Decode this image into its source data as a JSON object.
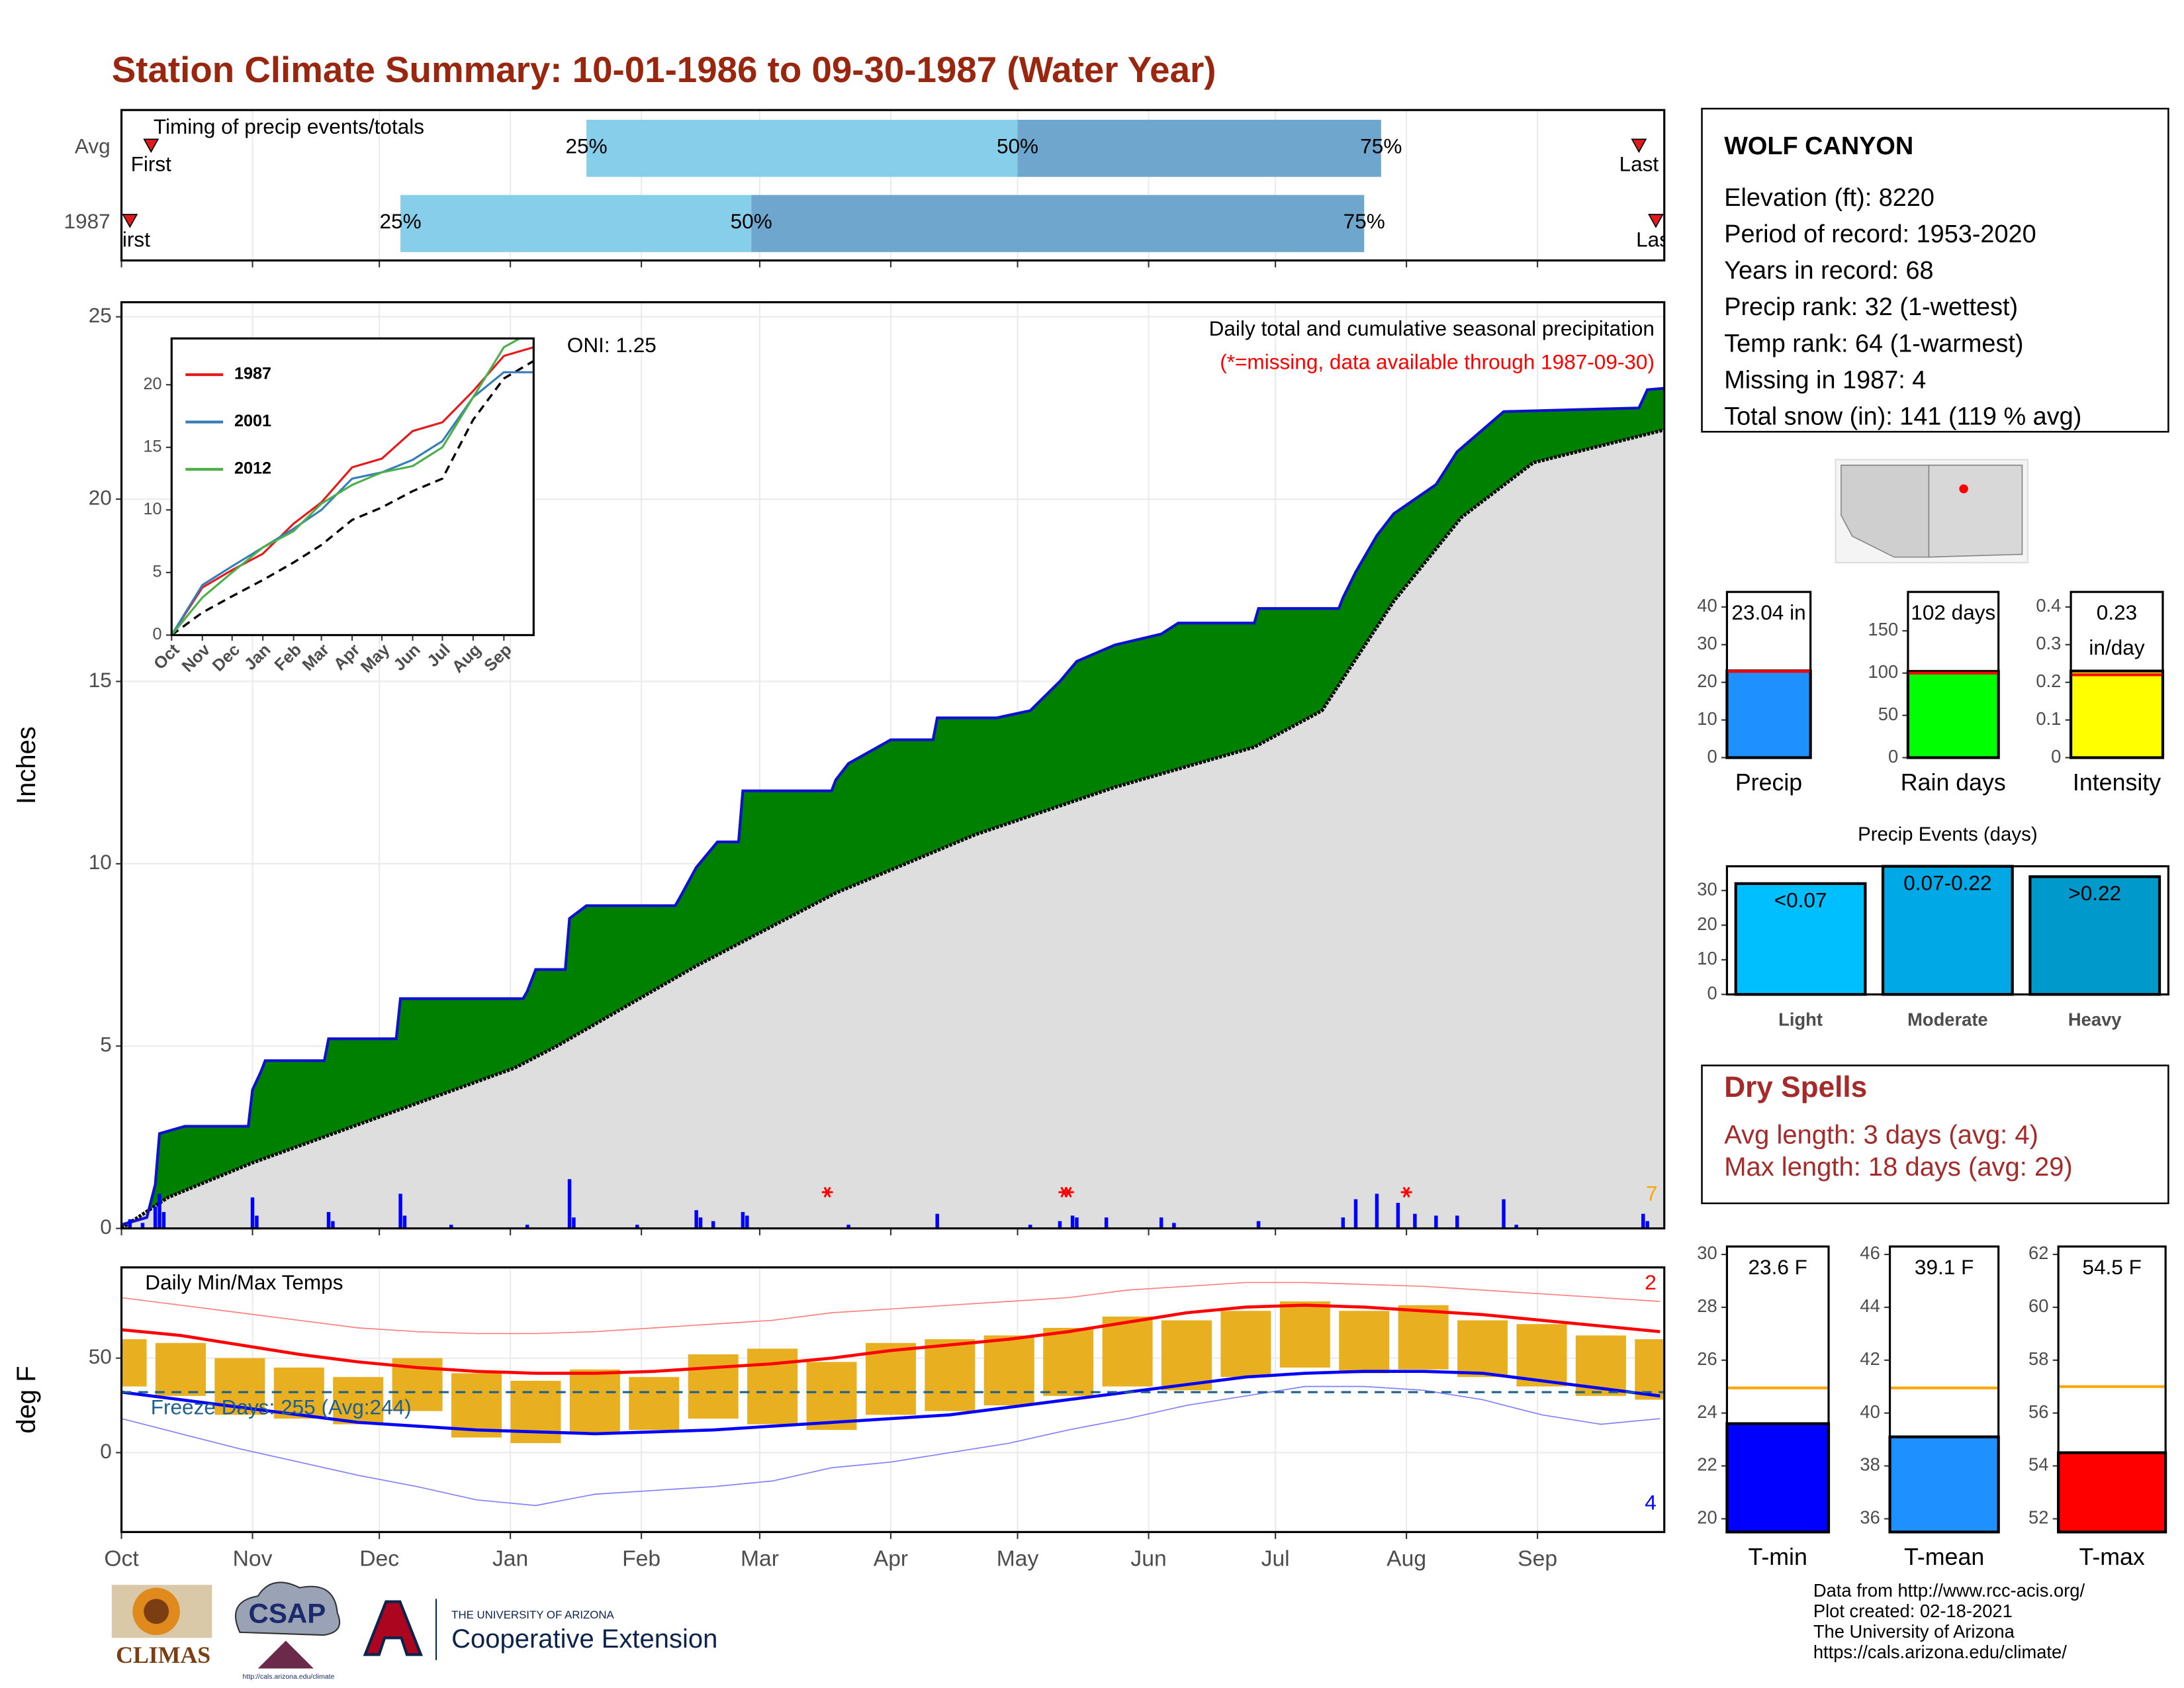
{
  "title": "Station Climate Summary: 10-01-1986 to 09-30-1987 (Water Year)",
  "chart_data": [
    {
      "type": "range-bar",
      "title": "Timing of precip events/totals",
      "categories": [
        "Avg",
        "1987"
      ],
      "first": [
        7,
        2
      ],
      "q25": [
        110,
        66
      ],
      "q50": [
        212,
        149
      ],
      "q75": [
        298,
        294
      ],
      "last": [
        359,
        363
      ],
      "labels": {
        "first": "First",
        "last": "Last",
        "q25": "25%",
        "q50": "50%",
        "q75": "75%"
      },
      "colors": [
        "#87ceeb",
        "#6fa6cd"
      ],
      "marker_color": "#e31a1c",
      "xlim": [
        0,
        365
      ],
      "xticks": [
        0,
        31,
        61,
        92,
        123,
        151,
        182,
        212,
        243,
        273,
        304,
        335
      ]
    },
    {
      "type": "area",
      "ylabel": "Inches",
      "annotation": "Daily total and cumulative seasonal precipitation",
      "note": "(*=missing, data available through 1987-09-30)",
      "note_color": "#ff0000",
      "oni": "ONI: 1.25",
      "count_label": "7",
      "count_color": "#ffa500",
      "grid": true,
      "xlim": [
        0,
        365
      ],
      "xticks": [
        0,
        31,
        61,
        92,
        123,
        151,
        182,
        212,
        243,
        273,
        304,
        335
      ],
      "ylim": [
        0,
        25.4
      ],
      "yticks": [
        0,
        5,
        10,
        15,
        20,
        25
      ],
      "observed": {
        "color": "#1010d0",
        "fill": "#008000",
        "x": [
          0,
          6,
          8,
          9,
          15,
          30,
          31,
          33,
          34,
          48,
          49,
          65,
          66,
          95,
          96,
          98,
          105,
          106,
          110,
          131,
          132,
          136,
          141,
          146,
          147,
          168,
          169,
          172,
          182,
          192,
          193,
          207,
          215,
          222,
          226,
          235,
          246,
          250,
          268,
          269,
          288,
          289,
          292,
          297,
          301,
          311,
          316,
          327,
          359,
          361,
          365
        ],
        "values": [
          0.1,
          0.3,
          1.2,
          2.6,
          2.8,
          2.8,
          3.8,
          4.3,
          4.6,
          4.6,
          5.2,
          5.2,
          6.3,
          6.3,
          6.5,
          7.1,
          7.1,
          8.5,
          8.85,
          8.85,
          9.05,
          9.9,
          10.6,
          10.6,
          12.0,
          12.0,
          12.3,
          12.75,
          13.4,
          13.4,
          14.0,
          14.0,
          14.2,
          15.0,
          15.55,
          16.0,
          16.3,
          16.6,
          16.6,
          17.0,
          17.0,
          17.3,
          18.0,
          19.0,
          19.6,
          20.4,
          21.3,
          22.4,
          22.5,
          23.0,
          23.04
        ]
      },
      "average": {
        "color": "#000000",
        "fill": "#dedede",
        "x": [
          0,
          11,
          31,
          62,
          93,
          103,
          136,
          169,
          202,
          235,
          268,
          284,
          301,
          317,
          334,
          365
        ],
        "values": [
          0,
          0.85,
          1.8,
          3.1,
          4.4,
          5.0,
          7.2,
          9.2,
          10.8,
          12.1,
          13.2,
          14.2,
          17.2,
          19.5,
          21.0,
          21.9
        ]
      },
      "daily": {
        "color": "#0000ff",
        "x": [
          2,
          5,
          8,
          9,
          10,
          31,
          32,
          49,
          50,
          66,
          67,
          78,
          96,
          106,
          107,
          122,
          136,
          137,
          140,
          147,
          148,
          172,
          193,
          215,
          222,
          225,
          226,
          233,
          246,
          249,
          269,
          289,
          292,
          297,
          302,
          306,
          311,
          316,
          327,
          330,
          360,
          361
        ],
        "values": [
          0.25,
          0.15,
          0.6,
          0.95,
          0.45,
          0.85,
          0.35,
          0.45,
          0.2,
          0.95,
          0.35,
          0.1,
          0.1,
          1.35,
          0.3,
          0.1,
          0.5,
          0.3,
          0.2,
          0.45,
          0.35,
          0.1,
          0.4,
          0.1,
          0.2,
          0.35,
          0.3,
          0.3,
          0.3,
          0.15,
          0.2,
          0.3,
          0.8,
          0.95,
          0.7,
          0.4,
          0.35,
          0.35,
          0.8,
          0.1,
          0.4,
          0.2
        ]
      },
      "missing": {
        "color": "#ff0000",
        "x": [
          167,
          223,
          224,
          304
        ]
      }
    },
    {
      "type": "line",
      "xlim": [
        0,
        365
      ],
      "xticks": [
        {
          "value": 0,
          "label": "Oct"
        },
        {
          "value": 31,
          "label": "Nov"
        },
        {
          "value": 61,
          "label": "Dec"
        },
        {
          "value": 92,
          "label": "Jan"
        },
        {
          "value": 123,
          "label": "Feb"
        },
        {
          "value": 151,
          "label": "Mar"
        },
        {
          "value": 182,
          "label": "Apr"
        },
        {
          "value": 212,
          "label": "May"
        },
        {
          "value": 243,
          "label": "Jun"
        },
        {
          "value": 273,
          "label": "Jul"
        },
        {
          "value": 304,
          "label": "Aug"
        },
        {
          "value": 335,
          "label": "Sep"
        }
      ],
      "ylim": [
        0,
        23.7
      ],
      "yticks": [
        0,
        5,
        10,
        15,
        20
      ],
      "x": [
        0,
        31,
        61,
        92,
        123,
        151,
        182,
        212,
        243,
        273,
        304,
        335,
        365
      ],
      "series": [
        {
          "name": "1987",
          "color": "#e41a1c",
          "values": [
            0,
            3.8,
            5.2,
            6.5,
            8.9,
            10.6,
            13.4,
            14.1,
            16.3,
            17.0,
            19.5,
            22.3,
            23.0
          ]
        },
        {
          "name": "2001",
          "color": "#377eb8",
          "values": [
            0,
            4,
            5.5,
            7,
            8.5,
            10,
            12.5,
            13,
            14,
            15.5,
            19,
            21,
            21
          ]
        },
        {
          "name": "2012",
          "color": "#4daf4a",
          "values": [
            0,
            3,
            5,
            7,
            8.3,
            10.5,
            12,
            13,
            13.5,
            15,
            19,
            23,
            24.3
          ]
        }
      ],
      "average": {
        "color": "#000000",
        "values": [
          0,
          1.8,
          3.1,
          4.4,
          5.8,
          7.2,
          9.2,
          10.2,
          11.5,
          12.5,
          17.2,
          20.5,
          21.9
        ]
      }
    },
    {
      "type": "range",
      "title": "Daily Min/Max Temps",
      "ylabel": "deg F",
      "grid": true,
      "xlim": [
        0,
        365
      ],
      "xticks": [
        {
          "value": 0,
          "label": "Oct"
        },
        {
          "value": 31,
          "label": "Nov"
        },
        {
          "value": 61,
          "label": "Dec"
        },
        {
          "value": 92,
          "label": "Jan"
        },
        {
          "value": 123,
          "label": "Feb"
        },
        {
          "value": 151,
          "label": "Mar"
        },
        {
          "value": 182,
          "label": "Apr"
        },
        {
          "value": 212,
          "label": "May"
        },
        {
          "value": 243,
          "label": "Jun"
        },
        {
          "value": 273,
          "label": "Jul"
        },
        {
          "value": 304,
          "label": "Aug"
        },
        {
          "value": 335,
          "label": "Sep"
        }
      ],
      "ylim": [
        -42,
        98
      ],
      "yticks": [
        0,
        50
      ],
      "x": [
        0,
        14,
        28,
        42,
        56,
        70,
        84,
        98,
        112,
        126,
        140,
        154,
        168,
        182,
        196,
        210,
        224,
        238,
        252,
        266,
        280,
        294,
        308,
        322,
        336,
        350,
        364
      ],
      "observed": {
        "color": "#e8b020",
        "low": [
          35,
          30,
          20,
          18,
          15,
          22,
          8,
          5,
          10,
          12,
          18,
          15,
          12,
          20,
          22,
          25,
          30,
          35,
          33,
          40,
          45,
          42,
          44,
          40,
          35,
          30,
          28
        ],
        "high": [
          60,
          58,
          50,
          45,
          40,
          50,
          42,
          38,
          44,
          40,
          52,
          55,
          48,
          58,
          60,
          62,
          66,
          72,
          70,
          75,
          80,
          75,
          78,
          70,
          68,
          62,
          60
        ]
      },
      "normal_max": {
        "color": "#ff0000",
        "values": [
          65,
          62,
          57,
          52,
          48,
          45,
          43,
          42,
          42,
          43,
          45,
          47,
          50,
          54,
          57,
          60,
          64,
          69,
          74,
          77,
          78,
          77,
          75,
          73,
          70,
          67,
          64
        ]
      },
      "normal_min": {
        "color": "#0000ff",
        "values": [
          32,
          28,
          24,
          20,
          16,
          14,
          12,
          11,
          10,
          11,
          12,
          14,
          16,
          18,
          20,
          24,
          28,
          32,
          36,
          40,
          42,
          43,
          43,
          42,
          38,
          34,
          30
        ]
      },
      "record_max": {
        "color": "#ff8080",
        "values": [
          82,
          78,
          74,
          70,
          66,
          64,
          63,
          63,
          64,
          66,
          68,
          70,
          74,
          76,
          78,
          80,
          82,
          86,
          88,
          90,
          90,
          89,
          88,
          86,
          84,
          82,
          80
        ]
      },
      "record_min": {
        "color": "#8080ff",
        "values": [
          18,
          10,
          2,
          -5,
          -12,
          -18,
          -25,
          -28,
          -22,
          -20,
          -18,
          -15,
          -8,
          -5,
          0,
          5,
          12,
          18,
          25,
          30,
          35,
          35,
          33,
          28,
          20,
          15,
          18
        ]
      },
      "freeze": {
        "value": 32,
        "label": "Freeze Days: 255 (Avg:244)",
        "color": "#1f5f8b"
      },
      "count_high": "2",
      "count_low": "4"
    },
    {
      "type": "bar",
      "categories": [
        "Precip"
      ],
      "values": [
        23.04
      ],
      "value_labels": [
        "23.04 in"
      ],
      "avg": 22.9,
      "avg_color": "#ff0000",
      "color": "#1e90ff",
      "ylim": [
        0,
        44
      ],
      "yticks": [
        0,
        10,
        20,
        30,
        40
      ]
    },
    {
      "type": "bar",
      "categories": [
        "Rain days"
      ],
      "values": [
        102
      ],
      "value_labels": [
        "102 days"
      ],
      "avg": 100,
      "avg_color": "#ff0000",
      "color": "#00ff00",
      "ylim": [
        0,
        196
      ],
      "yticks": [
        0,
        50,
        100,
        150
      ]
    },
    {
      "type": "bar",
      "categories": [
        "Intensity"
      ],
      "values": [
        0.23
      ],
      "unit": "in/day",
      "avg": 0.22,
      "avg_color": "#ff0000",
      "color": "#ffff00",
      "ylim": [
        0,
        0.44
      ],
      "yticks": [
        0.0,
        {
          "value": 0.1,
          "label": "0.1"
        },
        {
          "value": 0.2,
          "label": "0.2"
        },
        {
          "value": 0.3,
          "label": "0.3"
        },
        {
          "value": 0.4,
          "label": "0.4"
        }
      ]
    },
    {
      "type": "bar",
      "title": "Precip Events (days)",
      "categories": [
        "Light",
        "Moderate",
        "Heavy"
      ],
      "values": [
        32,
        37,
        34
      ],
      "thresholds": [
        "<0.07",
        "0.07-0.22",
        ">0.22"
      ],
      "colors": [
        "#00bfff",
        "#00a9e6",
        "#0099cc"
      ],
      "ylim": [
        0,
        37
      ],
      "yticks": [
        0,
        10,
        20,
        30
      ]
    },
    {
      "type": "bar",
      "categories": [
        "T-min"
      ],
      "values": [
        23.6
      ],
      "value_labels": [
        "23.6 F"
      ],
      "avg": 24.95,
      "avg_color": "#ffa500",
      "color": "#0000ff",
      "ylim": [
        19.5,
        30.3
      ],
      "yticks": [
        20,
        22,
        24,
        26,
        28,
        30
      ]
    },
    {
      "type": "bar",
      "categories": [
        "T-mean"
      ],
      "values": [
        39.1
      ],
      "value_labels": [
        "39.1 F"
      ],
      "avg": 40.95,
      "avg_color": "#ffa500",
      "color": "#1e90ff",
      "ylim": [
        35.5,
        46.3
      ],
      "yticks": [
        36,
        38,
        40,
        42,
        44,
        46
      ]
    },
    {
      "type": "bar",
      "categories": [
        "T-max"
      ],
      "values": [
        54.5
      ],
      "value_labels": [
        "54.5 F"
      ],
      "avg": 57,
      "avg_color": "#ffa500",
      "color": "#ff0000",
      "ylim": [
        51.5,
        62.3
      ],
      "yticks": [
        52,
        54,
        56,
        58,
        60,
        62
      ]
    }
  ],
  "station": {
    "name": "WOLF CANYON",
    "lines": [
      "Elevation (ft): 8220",
      "Period of record: 1953-2020",
      "Years in record: 68",
      "Precip rank: 32 (1-wettest)",
      "Temp rank: 64 (1-warmest)",
      "Missing in 1987: 4",
      "Total snow (in): 141 (119 % avg)"
    ]
  },
  "dry_spells": {
    "title": "Dry Spells",
    "lines": [
      "Avg length: 3 days (avg: 4)",
      "Max length: 18 days (avg: 29)"
    ]
  },
  "logos": {
    "climas": "CLIMAS",
    "csap": "CSAP",
    "csap_url": "http://cals.arizona.edu/climate",
    "university": "THE UNIVERSITY OF ARIZONA",
    "extension": "Cooperative Extension"
  },
  "credits": [
    "Data from http://www.rcc-acis.org/",
    "Plot created: 02-18-2021",
    "The University of Arizona",
    "https://cals.arizona.edu/climate/"
  ]
}
